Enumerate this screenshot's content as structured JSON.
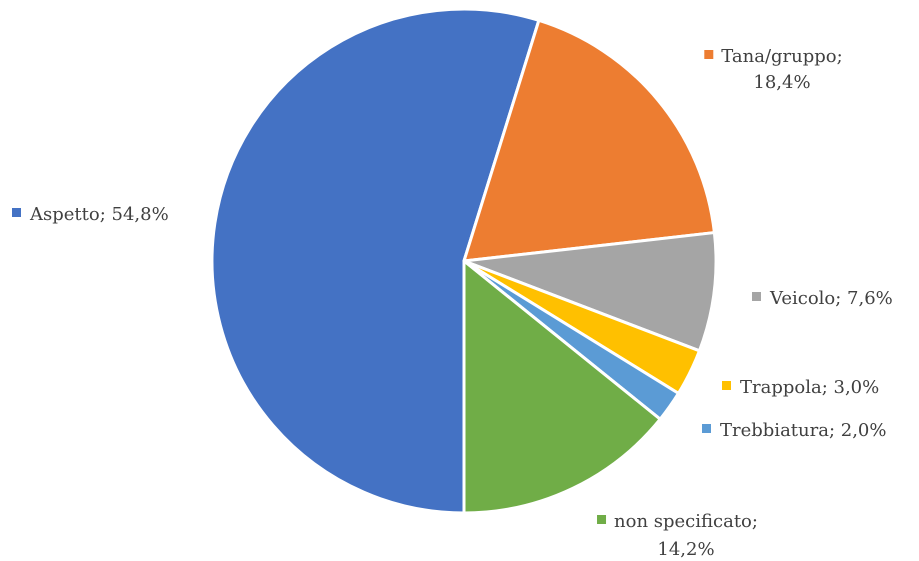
{
  "chart_data": {
    "type": "pie",
    "slices": [
      {
        "category": "Aspetto",
        "value": 54.8,
        "label_lines": [
          "Aspetto; 54,8%"
        ],
        "color": "#4472C4"
      },
      {
        "category": "Tana/gruppo",
        "value": 18.4,
        "label_lines": [
          "Tana/gruppo;",
          "18,4%"
        ],
        "color": "#ED7D31"
      },
      {
        "category": "Veicolo",
        "value": 7.6,
        "label_lines": [
          "Veicolo; 7,6%"
        ],
        "color": "#A5A5A5"
      },
      {
        "category": "Trappola",
        "value": 3.0,
        "label_lines": [
          "Trappola; 3,0%"
        ],
        "color": "#FFC000"
      },
      {
        "category": "Trebbiatura",
        "value": 2.0,
        "label_lines": [
          "Trebbiatura; 2,0%"
        ],
        "color": "#5B9BD5"
      },
      {
        "category": "non specificato",
        "value": 14.2,
        "label_lines": [
          "non specificato;",
          "14,2%"
        ],
        "color": "#70AD47"
      }
    ],
    "value_unit": "%",
    "slice_order": "counter-clockwise from the top"
  }
}
